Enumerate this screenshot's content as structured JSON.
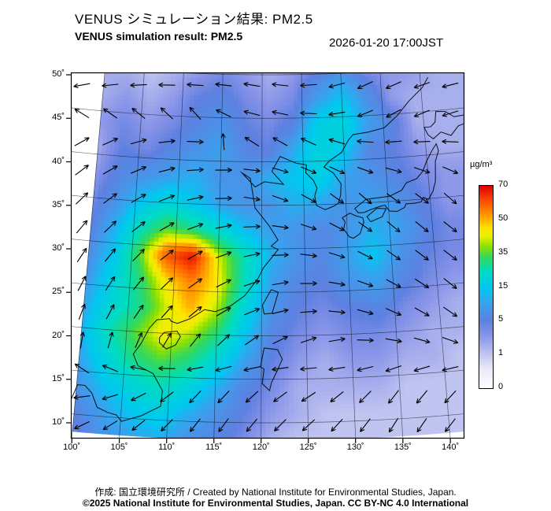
{
  "header": {
    "title_jp": "VENUS シミュレーション結果: PM2.5",
    "title_en": "VENUS simulation result: PM2.5",
    "timestamp": "2026-01-20 17:00JST"
  },
  "axes": {
    "lat_ticks": [
      50,
      45,
      40,
      35,
      30,
      25,
      20,
      15,
      10
    ],
    "lon_ticks": [
      100,
      105,
      110,
      115,
      120,
      125,
      130,
      135,
      140
    ],
    "deg_suffix": "˚"
  },
  "colorbar": {
    "unit": "µg/m³",
    "tick_values": [
      0,
      1,
      5,
      15,
      35,
      50,
      70
    ],
    "stops": [
      [
        0.0,
        "#ffffff"
      ],
      [
        0.1,
        "#e8e8f8"
      ],
      [
        0.167,
        "#c0c4f0"
      ],
      [
        0.26,
        "#8894e8"
      ],
      [
        0.333,
        "#5e80e0"
      ],
      [
        0.42,
        "#38a2ee"
      ],
      [
        0.5,
        "#00c8f0"
      ],
      [
        0.58,
        "#00dcc0"
      ],
      [
        0.645,
        "#30d860"
      ],
      [
        0.7,
        "#8ce000"
      ],
      [
        0.75,
        "#e8f000"
      ],
      [
        0.79,
        "#ffe400"
      ],
      [
        0.833,
        "#ffb000"
      ],
      [
        0.91,
        "#ff5c00"
      ],
      [
        1.0,
        "#e00000"
      ]
    ]
  },
  "chart_data": {
    "type": "heatmap",
    "title": "VENUS simulation result: PM2.5",
    "variable": "PM2.5 concentration",
    "unit": "µg/m³",
    "valid_time": "2026-01-20 17:00JST",
    "lon_range": [
      100,
      140
    ],
    "lat_range": [
      10,
      50
    ],
    "value_range": [
      0,
      70
    ],
    "lon": [
      100,
      103,
      106,
      109,
      112,
      115,
      118,
      121,
      124,
      127,
      130,
      133,
      136,
      139,
      142
    ],
    "lat": [
      50,
      47,
      44,
      41,
      38,
      35,
      32,
      29,
      26,
      23,
      20,
      17,
      14,
      11,
      8
    ],
    "values": [
      [
        2,
        2,
        1,
        2,
        3,
        4,
        3,
        2,
        3,
        5,
        8,
        4,
        3,
        3,
        2
      ],
      [
        2,
        3,
        2,
        3,
        5,
        6,
        4,
        3,
        4,
        10,
        15,
        8,
        3,
        2,
        2
      ],
      [
        3,
        4,
        3,
        4,
        6,
        8,
        5,
        4,
        6,
        18,
        20,
        10,
        6,
        2,
        2
      ],
      [
        2,
        5,
        4,
        6,
        8,
        10,
        6,
        5,
        12,
        20,
        15,
        6,
        5,
        3,
        2
      ],
      [
        3,
        6,
        8,
        10,
        12,
        8,
        8,
        12,
        15,
        18,
        10,
        8,
        6,
        4,
        3
      ],
      [
        4,
        8,
        15,
        20,
        15,
        10,
        8,
        8,
        12,
        10,
        8,
        10,
        8,
        5,
        3
      ],
      [
        5,
        12,
        25,
        35,
        30,
        22,
        14,
        10,
        8,
        6,
        8,
        12,
        10,
        6,
        4
      ],
      [
        6,
        15,
        35,
        60,
        68,
        42,
        26,
        12,
        8,
        6,
        10,
        15,
        8,
        5,
        4
      ],
      [
        8,
        18,
        30,
        45,
        55,
        45,
        25,
        10,
        6,
        5,
        8,
        10,
        6,
        4,
        3
      ],
      [
        10,
        20,
        28,
        40,
        50,
        40,
        20,
        8,
        5,
        4,
        5,
        6,
        4,
        3,
        2
      ],
      [
        12,
        25,
        35,
        45,
        40,
        30,
        15,
        6,
        4,
        3,
        4,
        4,
        3,
        2,
        2
      ],
      [
        10,
        20,
        30,
        35,
        30,
        20,
        10,
        5,
        3,
        2,
        3,
        3,
        2,
        2,
        1
      ],
      [
        8,
        15,
        20,
        25,
        20,
        12,
        6,
        4,
        2,
        2,
        2,
        2,
        1,
        1,
        1
      ],
      [
        6,
        10,
        15,
        18,
        12,
        8,
        5,
        3,
        2,
        1,
        1,
        1,
        1,
        1,
        1
      ],
      [
        4,
        8,
        10,
        12,
        8,
        6,
        4,
        2,
        1,
        1,
        1,
        1,
        1,
        1,
        1
      ]
    ],
    "wind": {
      "description": "wind vector direction grid, degrees (0=east, 90=north), rows north-to-south",
      "angles_deg": [
        [
          195,
          190,
          185,
          180,
          178,
          175,
          172,
          185,
          195,
          205,
          200,
          195,
          190
        ],
        [
          185,
          182,
          180,
          176,
          172,
          168,
          165,
          175,
          190,
          205,
          210,
          200,
          195
        ],
        [
          30,
          25,
          15,
          5,
          -5,
          160,
          165,
          170,
          180,
          195,
          205,
          200,
          195
        ],
        [
          40,
          32,
          24,
          14,
          2,
          -12,
          -25,
          -35,
          -40,
          -35,
          -30,
          -35,
          -42
        ],
        [
          48,
          40,
          32,
          22,
          12,
          0,
          -12,
          -24,
          -34,
          -42,
          -36,
          -38,
          -44
        ],
        [
          55,
          48,
          42,
          32,
          22,
          12,
          2,
          -10,
          -22,
          -32,
          -42,
          -38,
          -34
        ],
        [
          62,
          56,
          50,
          42,
          32,
          22,
          12,
          2,
          -10,
          -22,
          -32,
          -36,
          -42
        ],
        [
          70,
          62,
          54,
          46,
          36,
          26,
          16,
          6,
          -6,
          -16,
          -26,
          -32,
          -38
        ],
        [
          80,
          72,
          62,
          52,
          42,
          32,
          22,
          12,
          2,
          -12,
          -22,
          -28,
          -32
        ],
        [
          150,
          165,
          180,
          195,
          210,
          215,
          210,
          205,
          210,
          218,
          226,
          222,
          218
        ],
        [
          195,
          205,
          215,
          225,
          235,
          230,
          222,
          214,
          220,
          228,
          236,
          232,
          228
        ],
        [
          208,
          214,
          220,
          226,
          232,
          236,
          231,
          226,
          231,
          236,
          240,
          236,
          232
        ]
      ]
    }
  },
  "basemap": {
    "coastlines": [
      [
        [
          124.2,
          39.8
        ],
        [
          122.2,
          40.6
        ],
        [
          121.2,
          38.9
        ],
        [
          122.6,
          37.4
        ],
        [
          120.3,
          37.7
        ],
        [
          119.2,
          37.1
        ],
        [
          118.1,
          38.2
        ],
        [
          117.6,
          38.7
        ],
        [
          118.6,
          38.1
        ],
        [
          119.2,
          34.7
        ],
        [
          120.9,
          32.6
        ],
        [
          121.9,
          31.0
        ],
        [
          121.1,
          30.3
        ],
        [
          121.9,
          29.9
        ],
        [
          120.2,
          27.8
        ],
        [
          119.6,
          26.6
        ],
        [
          118.1,
          24.6
        ],
        [
          116.5,
          23.4
        ],
        [
          114.8,
          22.7
        ],
        [
          113.6,
          22.9
        ],
        [
          112.0,
          21.8
        ],
        [
          110.6,
          21.2
        ],
        [
          109.9,
          21.4
        ],
        [
          109.7,
          21.7
        ],
        [
          108.3,
          21.5
        ],
        [
          107.5,
          20.5
        ],
        [
          106.7,
          18.7
        ],
        [
          105.9,
          17.4
        ],
        [
          106.5,
          16.1
        ],
        [
          108.2,
          15.3
        ],
        [
          109.3,
          13.4
        ],
        [
          109.2,
          11.6
        ],
        [
          107.2,
          10.4
        ],
        [
          105.1,
          9.6
        ],
        [
          104.5,
          10.3
        ],
        [
          103.6,
          10.5
        ],
        [
          102.4,
          11.0
        ],
        [
          101.7,
          12.6
        ],
        [
          100.9,
          13.4
        ],
        [
          100.1,
          13.4
        ],
        [
          99.5,
          11.5
        ]
      ],
      [
        [
          124.2,
          39.8
        ],
        [
          125.4,
          39.6
        ],
        [
          125.3,
          38.7
        ],
        [
          126.2,
          37.8
        ],
        [
          126.6,
          36.9
        ],
        [
          126.3,
          36.0
        ],
        [
          126.5,
          34.9
        ],
        [
          127.5,
          34.4
        ],
        [
          128.6,
          34.8
        ],
        [
          129.1,
          35.1
        ],
        [
          129.4,
          36.0
        ],
        [
          129.5,
          37.3
        ],
        [
          128.6,
          38.6
        ],
        [
          127.5,
          39.3
        ],
        [
          128.2,
          40.0
        ],
        [
          129.7,
          40.9
        ],
        [
          130.6,
          42.3
        ],
        [
          131.2,
          42.9
        ],
        [
          133.1,
          43.1
        ],
        [
          135.1,
          43.5
        ],
        [
          136.8,
          44.8
        ],
        [
          138.3,
          46.3
        ],
        [
          140.2,
          47.8
        ],
        [
          141.0,
          48.9
        ]
      ],
      [
        [
          131.0,
          34.4
        ],
        [
          132.4,
          35.4
        ],
        [
          133.8,
          35.5
        ],
        [
          135.2,
          35.6
        ],
        [
          136.7,
          36.2
        ],
        [
          137.3,
          37.0
        ],
        [
          138.6,
          37.4
        ],
        [
          139.4,
          38.2
        ],
        [
          140.0,
          39.4
        ],
        [
          140.8,
          40.6
        ],
        [
          141.3,
          41.2
        ],
        [
          141.5,
          40.4
        ],
        [
          141.0,
          39.2
        ],
        [
          140.9,
          38.0
        ],
        [
          140.8,
          36.9
        ],
        [
          140.4,
          35.8
        ],
        [
          139.8,
          34.9
        ],
        [
          139.2,
          35.2
        ],
        [
          138.9,
          34.7
        ],
        [
          138.2,
          34.6
        ],
        [
          137.1,
          34.6
        ],
        [
          136.9,
          34.2
        ],
        [
          136.0,
          33.8
        ],
        [
          135.1,
          33.9
        ],
        [
          134.6,
          34.6
        ],
        [
          134.0,
          34.5
        ],
        [
          132.9,
          34.2
        ],
        [
          132.1,
          33.9
        ],
        [
          131.4,
          33.9
        ],
        [
          131.0,
          34.4
        ]
      ],
      [
        [
          130.2,
          31.2
        ],
        [
          129.6,
          32.1
        ],
        [
          129.8,
          32.9
        ],
        [
          129.5,
          33.4
        ],
        [
          130.4,
          33.9
        ],
        [
          131.0,
          33.6
        ],
        [
          131.9,
          33.3
        ],
        [
          132.0,
          32.8
        ],
        [
          131.5,
          31.5
        ],
        [
          130.7,
          31.0
        ],
        [
          130.2,
          31.2
        ]
      ],
      [
        [
          132.8,
          32.8
        ],
        [
          132.4,
          33.4
        ],
        [
          133.6,
          34.3
        ],
        [
          134.7,
          34.2
        ],
        [
          134.2,
          33.3
        ],
        [
          132.8,
          32.8
        ]
      ],
      [
        [
          140.4,
          42.3
        ],
        [
          140.0,
          43.2
        ],
        [
          140.8,
          43.2
        ],
        [
          141.4,
          43.7
        ],
        [
          141.6,
          44.9
        ],
        [
          142.8,
          44.8
        ],
        [
          143.8,
          44.1
        ],
        [
          145.2,
          44.2
        ],
        [
          145.3,
          43.3
        ],
        [
          144.2,
          43.0
        ],
        [
          143.2,
          42.0
        ],
        [
          142.0,
          42.5
        ],
        [
          141.0,
          41.8
        ],
        [
          140.4,
          42.3
        ]
      ],
      [
        [
          121.1,
          25.3
        ],
        [
          121.9,
          25.0
        ],
        [
          121.2,
          22.6
        ],
        [
          120.3,
          22.5
        ],
        [
          120.1,
          23.5
        ],
        [
          121.1,
          25.3
        ]
      ],
      [
        [
          109.2,
          20.1
        ],
        [
          110.6,
          20.3
        ],
        [
          111.0,
          19.7
        ],
        [
          110.5,
          18.7
        ],
        [
          109.5,
          18.2
        ],
        [
          108.7,
          18.9
        ],
        [
          108.7,
          19.5
        ],
        [
          109.2,
          20.1
        ]
      ],
      [
        [
          120.3,
          16.2
        ],
        [
          119.9,
          16.4
        ],
        [
          120.3,
          18.6
        ],
        [
          121.8,
          18.4
        ],
        [
          122.3,
          17.3
        ],
        [
          121.7,
          15.9
        ],
        [
          121.1,
          14.6
        ],
        [
          120.9,
          13.7
        ],
        [
          120.1,
          14.5
        ],
        [
          120.3,
          16.2
        ]
      ]
    ]
  },
  "footer": {
    "credit": "作成: 国立環境研究所 / Created by National Institute for Environmental Studies, Japan.",
    "copyright": "©2025 National Institute for Environmental Studies, Japan. CC BY-NC 4.0 International"
  }
}
